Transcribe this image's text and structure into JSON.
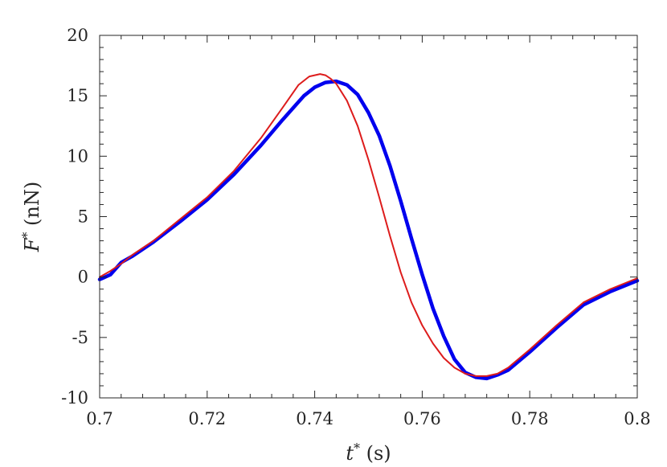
{
  "chart_data": {
    "type": "line",
    "title": "",
    "xlabel": {
      "symbol": "t",
      "sup": "*",
      "unit": " (s)"
    },
    "ylabel": {
      "symbol": "F",
      "sup": "*",
      "unit": " (nN)"
    },
    "xlim": [
      0.7,
      0.8
    ],
    "ylim": [
      -10,
      20
    ],
    "x_ticks": [
      0.7,
      0.72,
      0.74,
      0.76,
      0.78,
      0.8
    ],
    "x_tick_labels": [
      "0.7",
      "0.72",
      "0.74",
      "0.76",
      "0.78",
      "0.8"
    ],
    "y_ticks": [
      -10,
      -5,
      0,
      5,
      10,
      15,
      20
    ],
    "y_tick_labels": [
      "-10",
      "-5",
      "0",
      "5",
      "10",
      "15",
      "20"
    ],
    "grid": false,
    "legend": "none",
    "series": [
      {
        "color": "#0000ee",
        "line_width": "thick",
        "x": [
          0.7,
          0.702,
          0.704,
          0.706,
          0.71,
          0.715,
          0.72,
          0.725,
          0.73,
          0.734,
          0.738,
          0.74,
          0.742,
          0.744,
          0.746,
          0.748,
          0.75,
          0.752,
          0.754,
          0.756,
          0.758,
          0.76,
          0.762,
          0.764,
          0.766,
          0.768,
          0.77,
          0.772,
          0.774,
          0.776,
          0.78,
          0.785,
          0.79,
          0.795,
          0.8
        ],
        "y": [
          -0.2,
          0.2,
          1.2,
          1.7,
          2.9,
          4.6,
          6.4,
          8.5,
          10.9,
          13.0,
          15.0,
          15.7,
          16.1,
          16.2,
          15.9,
          15.1,
          13.6,
          11.7,
          9.2,
          6.3,
          3.2,
          0.2,
          -2.6,
          -4.9,
          -6.8,
          -7.9,
          -8.3,
          -8.4,
          -8.1,
          -7.7,
          -6.2,
          -4.2,
          -2.3,
          -1.2,
          -0.3
        ]
      },
      {
        "color": "#dd1c1c",
        "line_width": "thin",
        "x": [
          0.7,
          0.702,
          0.704,
          0.706,
          0.71,
          0.715,
          0.72,
          0.725,
          0.73,
          0.734,
          0.737,
          0.739,
          0.741,
          0.742,
          0.743,
          0.744,
          0.745,
          0.746,
          0.748,
          0.75,
          0.752,
          0.754,
          0.756,
          0.758,
          0.76,
          0.762,
          0.764,
          0.766,
          0.768,
          0.77,
          0.772,
          0.774,
          0.776,
          0.78,
          0.785,
          0.79,
          0.795,
          0.8
        ],
        "y": [
          0.0,
          0.5,
          1.1,
          1.8,
          3.0,
          4.8,
          6.6,
          8.8,
          11.5,
          14.0,
          15.9,
          16.6,
          16.8,
          16.7,
          16.4,
          16.0,
          15.3,
          14.6,
          12.5,
          9.7,
          6.6,
          3.4,
          0.4,
          -2.1,
          -4.0,
          -5.5,
          -6.7,
          -7.5,
          -8.0,
          -8.2,
          -8.2,
          -8.0,
          -7.5,
          -6.0,
          -4.0,
          -2.1,
          -1.0,
          -0.1
        ]
      }
    ]
  }
}
